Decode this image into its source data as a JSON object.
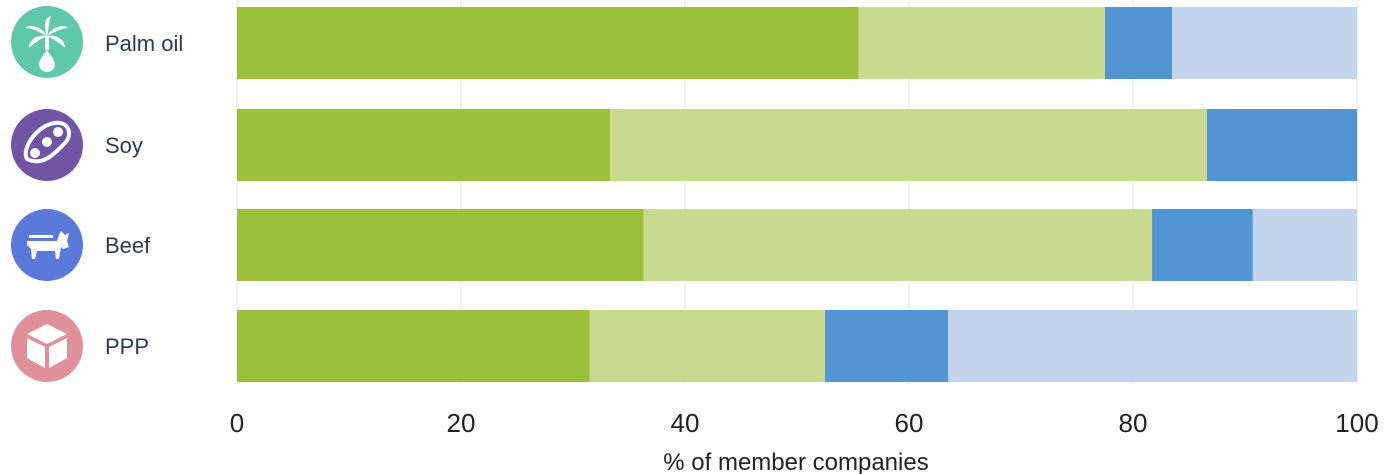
{
  "chart_data": {
    "type": "bar",
    "orientation": "horizontal",
    "stacked": true,
    "categories": [
      "Palm oil",
      "Soy",
      "Beef",
      "PPP"
    ],
    "category_icons": [
      {
        "name": "palm-tree-drop-icon",
        "color": "#5fc8a8"
      },
      {
        "name": "soybean-pod-icon",
        "color": "#6f55a3"
      },
      {
        "name": "cow-icon",
        "color": "#5b79d9"
      },
      {
        "name": "package-box-icon",
        "color": "#e0909a"
      }
    ],
    "series": [
      {
        "color": "#9dc03a",
        "values": [
          55.5,
          33.3,
          36.3,
          31.5
        ]
      },
      {
        "color": "#c9d98f",
        "values": [
          22.0,
          53.3,
          45.4,
          21.0
        ]
      },
      {
        "color": "#5196d3",
        "values": [
          6.0,
          13.4,
          9.0,
          11.0
        ]
      },
      {
        "color": "#c3d4ed",
        "values": [
          16.5,
          0,
          9.3,
          36.5
        ]
      }
    ],
    "xlim": [
      0,
      100
    ],
    "xticks": [
      0,
      20,
      40,
      60,
      80,
      100
    ],
    "xlabel": "% of member companies",
    "grid": true
  }
}
